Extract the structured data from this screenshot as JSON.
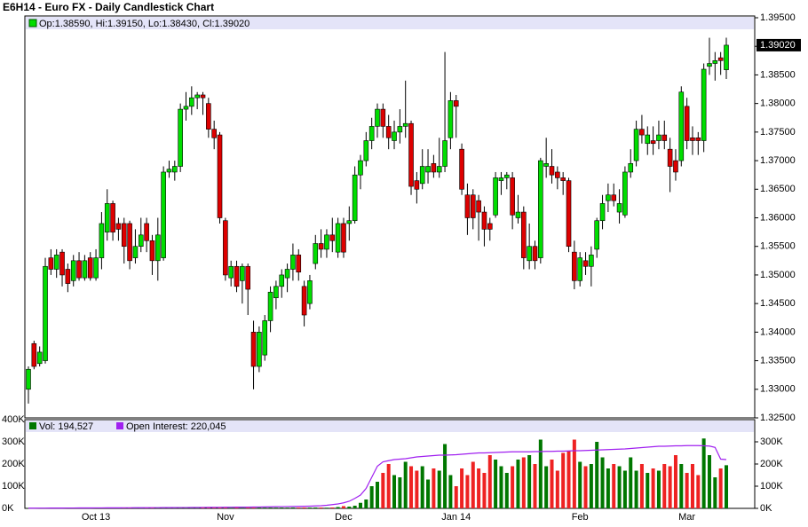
{
  "chart_data": {
    "type": "candlestick",
    "title": "E6H14 - Euro FX - Daily Candlestick Chart",
    "legend": "Op:1.38590, Hi:1.39150, Lo:1.38430, Cl:1.39020",
    "up_color": "#00dd00",
    "down_color": "#dd0000",
    "ylim": [
      1.325,
      1.395
    ],
    "yticks": [
      {
        "value": 1.325,
        "label": "1.32500"
      },
      {
        "value": 1.33,
        "label": "1.33000"
      },
      {
        "value": 1.335,
        "label": "1.33500"
      },
      {
        "value": 1.34,
        "label": "1.34000"
      },
      {
        "value": 1.345,
        "label": "1.34500"
      },
      {
        "value": 1.35,
        "label": "1.35000"
      },
      {
        "value": 1.355,
        "label": "1.35500"
      },
      {
        "value": 1.36,
        "label": "1.36000"
      },
      {
        "value": 1.365,
        "label": "1.36500"
      },
      {
        "value": 1.37,
        "label": "1.37000"
      },
      {
        "value": 1.375,
        "label": "1.37500"
      },
      {
        "value": 1.38,
        "label": "1.38000"
      },
      {
        "value": 1.385,
        "label": "1.38500"
      },
      {
        "value": 1.39,
        "label": "1.39000"
      },
      {
        "value": 1.395,
        "label": "1.39500"
      }
    ],
    "last_price_label": "1.39020",
    "categories": [
      null,
      null,
      null,
      null,
      null,
      null,
      null,
      null,
      null,
      null,
      null,
      null,
      "Oct 13",
      null,
      null,
      null,
      null,
      null,
      null,
      null,
      null,
      null,
      null,
      null,
      null,
      null,
      null,
      null,
      null,
      null,
      null,
      null,
      null,
      null,
      null,
      "Nov",
      null,
      null,
      null,
      null,
      null,
      null,
      null,
      null,
      null,
      null,
      null,
      null,
      null,
      null,
      null,
      null,
      null,
      null,
      null,
      null,
      "Dec",
      null,
      null,
      null,
      null,
      null,
      null,
      null,
      null,
      null,
      null,
      null,
      null,
      null,
      null,
      null,
      null,
      null,
      null,
      null,
      "Jan 14",
      null,
      null,
      null,
      null,
      null,
      null,
      null,
      null,
      null,
      null,
      null,
      null,
      null,
      null,
      null,
      null,
      null,
      null,
      null,
      null,
      null,
      "Feb",
      null,
      null,
      null,
      null,
      null,
      null,
      null,
      null,
      null,
      null,
      null,
      null,
      null,
      null,
      null,
      null,
      null,
      null,
      "Mar",
      null,
      null,
      null,
      null,
      null,
      null,
      null
    ],
    "ohlc": [
      [
        1.33,
        1.334,
        1.3275,
        1.3335
      ],
      [
        1.338,
        1.3385,
        1.3335,
        1.334
      ],
      [
        1.3345,
        1.3375,
        1.334,
        1.3365
      ],
      [
        1.335,
        1.353,
        1.3345,
        1.3515
      ],
      [
        1.353,
        1.3545,
        1.35,
        1.351
      ],
      [
        1.351,
        1.3545,
        1.3495,
        1.3535
      ],
      [
        1.354,
        1.3545,
        1.348,
        1.35
      ],
      [
        1.351,
        1.352,
        1.347,
        1.3485
      ],
      [
        1.349,
        1.3535,
        1.348,
        1.3525
      ],
      [
        1.3525,
        1.354,
        1.349,
        1.3495
      ],
      [
        1.3495,
        1.3535,
        1.349,
        1.3525
      ],
      [
        1.353,
        1.354,
        1.349,
        1.3495
      ],
      [
        1.3495,
        1.3545,
        1.349,
        1.353
      ],
      [
        1.353,
        1.361,
        1.351,
        1.359
      ],
      [
        1.3575,
        1.365,
        1.356,
        1.3625
      ],
      [
        1.3625,
        1.363,
        1.356,
        1.3575
      ],
      [
        1.359,
        1.36,
        1.356,
        1.358
      ],
      [
        1.359,
        1.36,
        1.352,
        1.355
      ],
      [
        1.359,
        1.3595,
        1.351,
        1.3525
      ],
      [
        1.353,
        1.358,
        1.352,
        1.355
      ],
      [
        1.355,
        1.36,
        1.354,
        1.357
      ],
      [
        1.359,
        1.36,
        1.354,
        1.356
      ],
      [
        1.356,
        1.357,
        1.35,
        1.3525
      ],
      [
        1.3525,
        1.36,
        1.349,
        1.357
      ],
      [
        1.353,
        1.369,
        1.3525,
        1.368
      ],
      [
        1.368,
        1.37,
        1.367,
        1.3685
      ],
      [
        1.368,
        1.37,
        1.3665,
        1.369
      ],
      [
        1.369,
        1.38,
        1.368,
        1.379
      ],
      [
        1.379,
        1.382,
        1.377,
        1.3795
      ],
      [
        1.3795,
        1.383,
        1.378,
        1.381
      ],
      [
        1.381,
        1.382,
        1.379,
        1.3815
      ],
      [
        1.3815,
        1.382,
        1.378,
        1.381
      ],
      [
        1.38,
        1.381,
        1.374,
        1.3755
      ],
      [
        1.3755,
        1.377,
        1.372,
        1.374
      ],
      [
        1.3745,
        1.375,
        1.359,
        1.36
      ],
      [
        1.3595,
        1.36,
        1.349,
        1.35
      ],
      [
        1.3495,
        1.3525,
        1.348,
        1.3515
      ],
      [
        1.3515,
        1.3525,
        1.347,
        1.348
      ],
      [
        1.349,
        1.352,
        1.345,
        1.3515
      ],
      [
        1.3515,
        1.352,
        1.343,
        1.3475
      ],
      [
        1.34,
        1.342,
        1.33,
        1.334
      ],
      [
        1.334,
        1.341,
        1.333,
        1.34
      ],
      [
        1.336,
        1.343,
        1.335,
        1.342
      ],
      [
        1.342,
        1.348,
        1.34,
        1.347
      ],
      [
        1.346,
        1.349,
        1.344,
        1.348
      ],
      [
        1.348,
        1.351,
        1.346,
        1.35
      ],
      [
        1.3495,
        1.352,
        1.347,
        1.351
      ],
      [
        1.351,
        1.3555,
        1.349,
        1.3535
      ],
      [
        1.3535,
        1.3545,
        1.349,
        1.3505
      ],
      [
        1.348,
        1.349,
        1.341,
        1.343
      ],
      [
        1.345,
        1.35,
        1.344,
        1.349
      ],
      [
        1.352,
        1.357,
        1.351,
        1.3555
      ],
      [
        1.3555,
        1.358,
        1.353,
        1.3545
      ],
      [
        1.3545,
        1.358,
        1.353,
        1.357
      ],
      [
        1.357,
        1.36,
        1.354,
        1.356
      ],
      [
        1.354,
        1.36,
        1.353,
        1.359
      ],
      [
        1.359,
        1.36,
        1.353,
        1.354
      ],
      [
        1.359,
        1.362,
        1.356,
        1.3595
      ],
      [
        1.3595,
        1.369,
        1.359,
        1.3675
      ],
      [
        1.3675,
        1.371,
        1.365,
        1.37
      ],
      [
        1.37,
        1.375,
        1.369,
        1.3735
      ],
      [
        1.3735,
        1.3775,
        1.372,
        1.376
      ],
      [
        1.376,
        1.38,
        1.374,
        1.379
      ],
      [
        1.379,
        1.38,
        1.374,
        1.376
      ],
      [
        1.376,
        1.378,
        1.372,
        1.374
      ],
      [
        1.3735,
        1.377,
        1.372,
        1.375
      ],
      [
        1.375,
        1.379,
        1.373,
        1.376
      ],
      [
        1.376,
        1.384,
        1.374,
        1.3765
      ],
      [
        1.3765,
        1.377,
        1.364,
        1.3655
      ],
      [
        1.3665,
        1.368,
        1.3625,
        1.365
      ],
      [
        1.366,
        1.372,
        1.365,
        1.369
      ],
      [
        1.368,
        1.372,
        1.366,
        1.369
      ],
      [
        1.3695,
        1.371,
        1.367,
        1.368
      ],
      [
        1.368,
        1.374,
        1.367,
        1.369
      ],
      [
        1.369,
        1.389,
        1.368,
        1.3735
      ],
      [
        1.374,
        1.382,
        1.372,
        1.3805
      ],
      [
        1.3805,
        1.3815,
        1.374,
        1.3795
      ],
      [
        1.372,
        1.373,
        1.364,
        1.365
      ],
      [
        1.364,
        1.366,
        1.357,
        1.36
      ],
      [
        1.364,
        1.365,
        1.358,
        1.36
      ],
      [
        1.363,
        1.364,
        1.356,
        1.361
      ],
      [
        1.361,
        1.362,
        1.355,
        1.358
      ],
      [
        1.359,
        1.36,
        1.356,
        1.358
      ],
      [
        1.3605,
        1.368,
        1.36,
        1.367
      ],
      [
        1.3665,
        1.368,
        1.364,
        1.367
      ],
      [
        1.367,
        1.368,
        1.365,
        1.3675
      ],
      [
        1.367,
        1.368,
        1.358,
        1.3605
      ],
      [
        1.36,
        1.364,
        1.359,
        1.361
      ],
      [
        1.361,
        1.362,
        1.351,
        1.353
      ],
      [
        1.3525,
        1.359,
        1.351,
        1.355
      ],
      [
        1.355,
        1.356,
        1.351,
        1.3525
      ],
      [
        1.353,
        1.3705,
        1.352,
        1.37
      ],
      [
        1.369,
        1.374,
        1.367,
        1.3695
      ],
      [
        1.369,
        1.372,
        1.366,
        1.3675
      ],
      [
        1.368,
        1.369,
        1.365,
        1.367
      ],
      [
        1.367,
        1.368,
        1.364,
        1.3665
      ],
      [
        1.3665,
        1.367,
        1.354,
        1.355
      ],
      [
        1.354,
        1.356,
        1.3475,
        1.349
      ],
      [
        1.349,
        1.354,
        1.348,
        1.353
      ],
      [
        1.3525,
        1.354,
        1.35,
        1.3515
      ],
      [
        1.3515,
        1.355,
        1.348,
        1.3535
      ],
      [
        1.3545,
        1.36,
        1.353,
        1.3595
      ],
      [
        1.3595,
        1.364,
        1.358,
        1.3625
      ],
      [
        1.363,
        1.366,
        1.361,
        1.364
      ],
      [
        1.364,
        1.366,
        1.362,
        1.363
      ],
      [
        1.361,
        1.365,
        1.359,
        1.3625
      ],
      [
        1.3605,
        1.369,
        1.36,
        1.368
      ],
      [
        1.368,
        1.372,
        1.367,
        1.3695
      ],
      [
        1.37,
        1.377,
        1.369,
        1.3755
      ],
      [
        1.3755,
        1.378,
        1.373,
        1.3745
      ],
      [
        1.373,
        1.376,
        1.371,
        1.3745
      ],
      [
        1.3735,
        1.376,
        1.371,
        1.373
      ],
      [
        1.3735,
        1.377,
        1.372,
        1.3745
      ],
      [
        1.3745,
        1.377,
        1.372,
        1.3735
      ],
      [
        1.372,
        1.374,
        1.3645,
        1.369
      ],
      [
        1.37,
        1.372,
        1.3665,
        1.368
      ],
      [
        1.37,
        1.383,
        1.369,
        1.382
      ],
      [
        1.3795,
        1.381,
        1.372,
        1.3735
      ],
      [
        1.374,
        1.376,
        1.371,
        1.3735
      ],
      [
        1.374,
        1.375,
        1.371,
        1.3735
      ],
      [
        1.3735,
        1.387,
        1.3715,
        1.386
      ],
      [
        1.3865,
        1.3915,
        1.385,
        1.387
      ],
      [
        1.387,
        1.389,
        1.384,
        1.3875
      ],
      [
        1.388,
        1.389,
        1.385,
        1.3875
      ],
      [
        1.3859,
        1.3915,
        1.3843,
        1.3902
      ]
    ],
    "volume": {
      "legend": "Vol: 194,527",
      "up_color": "#007700",
      "down_color": "#ee2222",
      "ylim": [
        0,
        400000
      ],
      "yticks": [
        {
          "value": 0,
          "label": "0K"
        },
        {
          "value": 100000,
          "label": "100K"
        },
        {
          "value": 200000,
          "label": "200K"
        },
        {
          "value": 300000,
          "label": "300K"
        },
        {
          "value": 400000,
          "label": "400K"
        }
      ],
      "values": [
        1200,
        1500,
        1300,
        1800,
        1600,
        1400,
        1700,
        1500,
        1900,
        1600,
        1800,
        2000,
        1700,
        2100,
        1900,
        2200,
        2000,
        2300,
        2100,
        2400,
        2200,
        2500,
        2300,
        2600,
        2400,
        2700,
        2500,
        2800,
        2600,
        2900,
        2700,
        3000,
        2800,
        3100,
        2900,
        3200,
        3000,
        3300,
        3100,
        3400,
        3200,
        3500,
        3300,
        3600,
        3400,
        3700,
        3500,
        3800,
        3600,
        3900,
        3700,
        4000,
        3800,
        3000,
        4000,
        6000,
        10000,
        8000,
        12000,
        25000,
        40000,
        100000,
        120000,
        160000,
        200000,
        150000,
        140000,
        210000,
        190000,
        170000,
        190000,
        130000,
        180000,
        170000,
        290000,
        150000,
        100000,
        180000,
        150000,
        210000,
        180000,
        160000,
        240000,
        220000,
        190000,
        160000,
        190000,
        220000,
        230000,
        240000,
        200000,
        310000,
        190000,
        220000,
        170000,
        250000,
        260000,
        310000,
        210000,
        190000,
        200000,
        300000,
        230000,
        180000,
        200000,
        190000,
        170000,
        230000,
        170000,
        200000,
        160000,
        180000,
        170000,
        200000,
        190000,
        240000,
        200000,
        160000,
        200000,
        150000,
        315000,
        240000,
        140000,
        180000,
        194527
      ]
    },
    "open_interest": {
      "legend": "Open Interest: 220,045",
      "color": "#a020f0",
      "values": [
        1000,
        1100,
        1200,
        1300,
        1400,
        1500,
        1600,
        1700,
        1800,
        1900,
        2000,
        2100,
        2200,
        2300,
        2400,
        2500,
        2600,
        2700,
        2800,
        2900,
        3000,
        3100,
        3200,
        3300,
        3400,
        3500,
        3600,
        3700,
        3800,
        3900,
        4000,
        4200,
        4400,
        4600,
        4800,
        5000,
        5200,
        5400,
        5600,
        5800,
        6000,
        6300,
        6600,
        7000,
        7400,
        7800,
        8200,
        8600,
        9000,
        9500,
        10000,
        11000,
        12000,
        14000,
        17000,
        20000,
        25000,
        32000,
        45000,
        60000,
        90000,
        140000,
        190000,
        210000,
        215000,
        220000,
        222000,
        224000,
        228000,
        232000,
        234000,
        236000,
        238000,
        240000,
        240000,
        241000,
        242000,
        244000,
        246000,
        248000,
        250000,
        250000,
        251000,
        252000,
        253000,
        254000,
        255000,
        255000,
        255000,
        255000,
        256000,
        256000,
        257000,
        257000,
        258000,
        258000,
        259000,
        260000,
        260000,
        261000,
        262000,
        263000,
        264000,
        265000,
        266000,
        267000,
        268000,
        270000,
        272000,
        274000,
        276000,
        278000,
        280000,
        280000,
        281000,
        282000,
        282000,
        283000,
        283000,
        283000,
        282000,
        281000,
        275000,
        222000,
        220045
      ]
    }
  }
}
